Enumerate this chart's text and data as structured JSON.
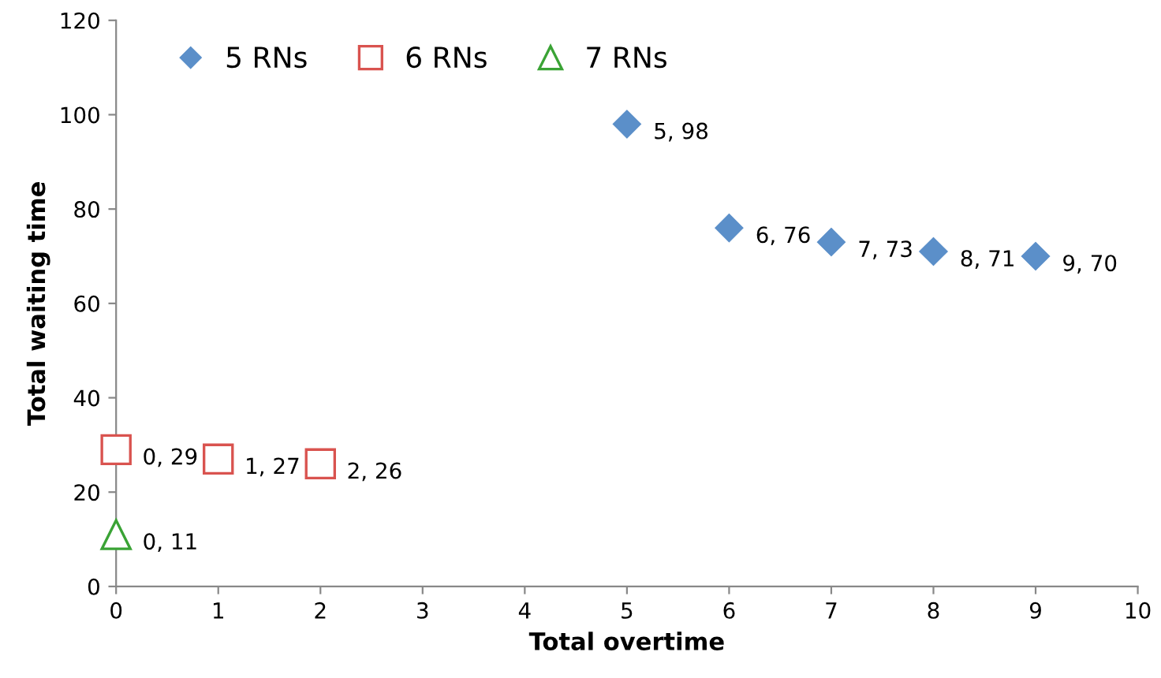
{
  "chart_data": {
    "type": "scatter",
    "xlabel": "Total overtime",
    "ylabel": "Total waiting time",
    "xlim": [
      0,
      10
    ],
    "xticks": [
      0,
      1,
      2,
      3,
      4,
      5,
      6,
      7,
      8,
      9,
      10
    ],
    "ylim": [
      0,
      120
    ],
    "yticks": [
      0,
      20,
      40,
      60,
      80,
      100,
      120
    ],
    "grid": false,
    "legend": "top left",
    "series": [
      {
        "name": "5 RNs",
        "color": "#5b8fc9",
        "marker": "diamond",
        "x": [
          5,
          6,
          7,
          8,
          9
        ],
        "values": [
          98,
          76,
          73,
          71,
          70
        ],
        "value_labels": [
          "5, 98",
          "6, 76",
          "7, 73",
          "8, 71",
          "9, 70"
        ]
      },
      {
        "name": "6 RNs",
        "color": "#d9534f",
        "marker": "square",
        "x": [
          0,
          1,
          2
        ],
        "values": [
          29,
          27,
          26
        ],
        "value_labels": [
          "0, 29",
          "1, 27",
          "2, 26"
        ]
      },
      {
        "name": "7 RNs",
        "color": "#3aa335",
        "marker": "triangle",
        "x": [
          0
        ],
        "values": [
          11
        ],
        "value_labels": [
          "0, 11"
        ]
      }
    ]
  }
}
